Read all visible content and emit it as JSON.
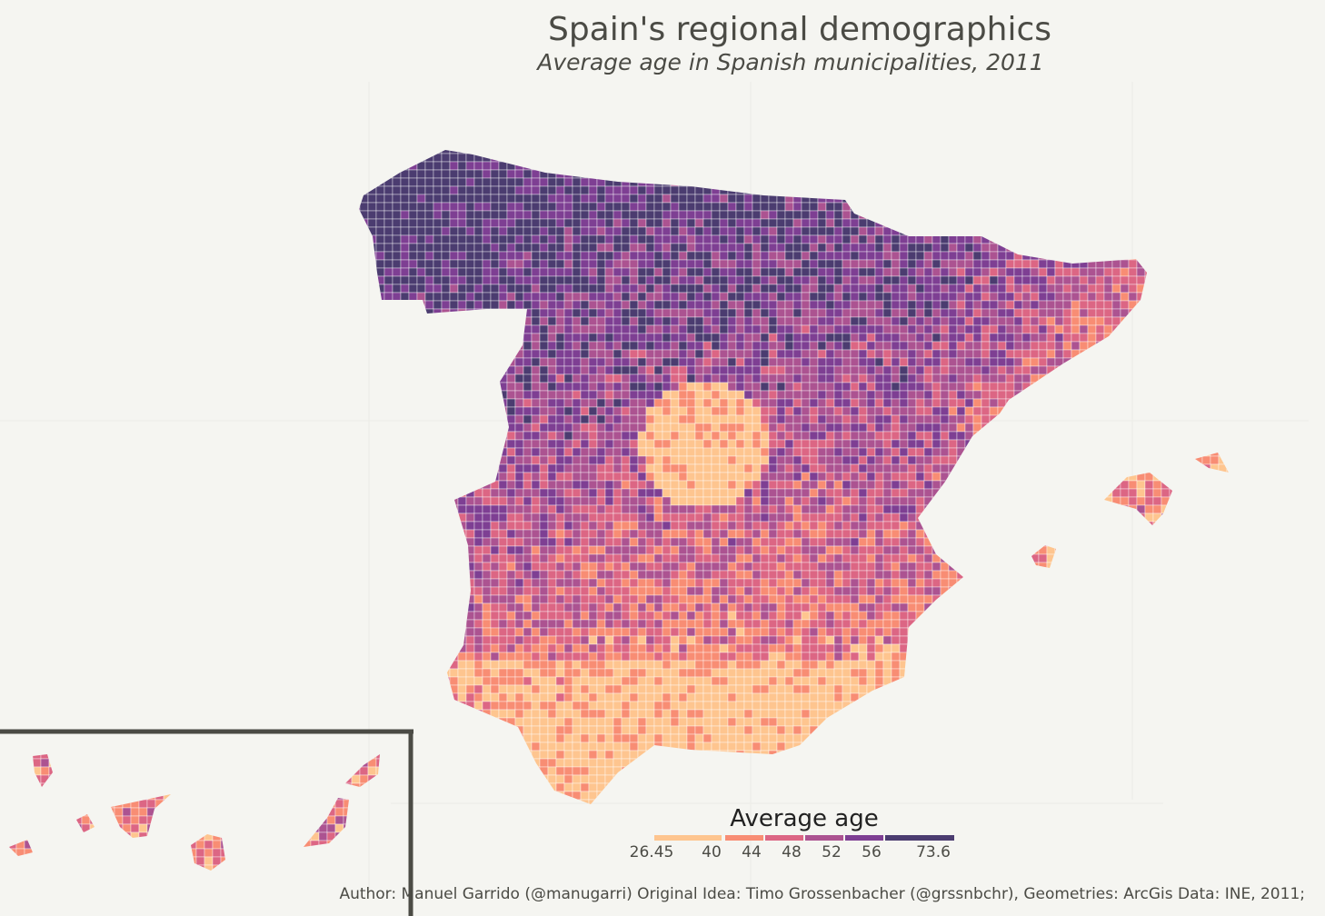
{
  "title": "Spain's regional demographics",
  "subtitle": "Average age in Spanish municipalities, 2011",
  "legend": {
    "title": "Average age",
    "breaks": [
      "26.45",
      "40",
      "44",
      "48",
      "52",
      "56",
      "73.6"
    ],
    "colors": [
      "#fec58f",
      "#f88d74",
      "#dc6684",
      "#ac5391",
      "#7e3f93",
      "#4b3c70"
    ]
  },
  "caption": "Author: Manuel Garrido (@manugarri) Original Idea: Timo Grossenbacher (@grssnbchr), Geometries: ArcGis Data: INE, 2011;",
  "map": {
    "region": "Spain",
    "inset": "Canary Islands",
    "background": "#f5f5f1",
    "border_color": "#ffffff",
    "inset_frame_color": "#4b4b45"
  }
}
